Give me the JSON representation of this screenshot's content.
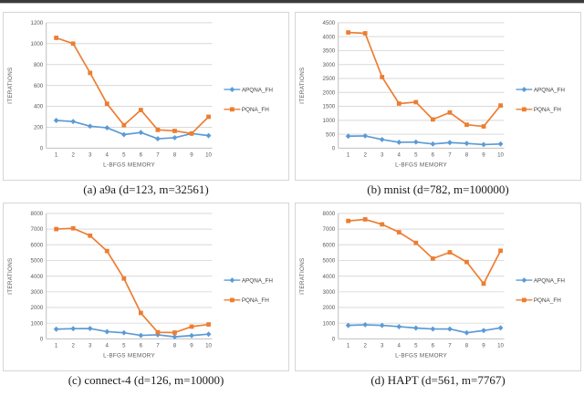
{
  "page": {
    "background": "#ffffff",
    "top_rule_color": "#3a3a3a"
  },
  "styles": {
    "grid_color": "#d9d9d9",
    "axis_color": "#bfbfbf",
    "tick_label_color": "#595959",
    "axis_title_color": "#595959",
    "legend_text_color": "#404040",
    "panel_border_color": "#d6d6d6",
    "series_colors": {
      "APQNA_FH": "#5b9bd5",
      "PQNA_FH": "#ed7d31"
    }
  },
  "chart_data": [
    {
      "id": "a",
      "type": "line",
      "caption": "(a) a9a (d=123, m=32561)",
      "xlabel": "L-BFGS MEMORY",
      "ylabel": "ITERATIONS",
      "categories": [
        1,
        2,
        3,
        4,
        5,
        6,
        7,
        8,
        9,
        10
      ],
      "ylim": [
        0,
        1200
      ],
      "yticks": [
        0,
        200,
        400,
        600,
        800,
        1000,
        1200
      ],
      "grid": true,
      "legend_position": "right",
      "series": [
        {
          "name": "APQNA_FH",
          "color": "#5b9bd5",
          "marker": "diamond",
          "values": [
            265,
            255,
            210,
            195,
            130,
            150,
            90,
            100,
            140,
            120
          ]
        },
        {
          "name": "PQNA_FH",
          "color": "#ed7d31",
          "marker": "square",
          "values": [
            1055,
            1000,
            720,
            425,
            220,
            365,
            175,
            165,
            140,
            300
          ]
        }
      ]
    },
    {
      "id": "b",
      "type": "line",
      "caption": "(b) mnist (d=782, m=100000)",
      "xlabel": "L-BFGS MEMORY",
      "ylabel": "ITERATIONS",
      "categories": [
        1,
        2,
        3,
        4,
        5,
        6,
        7,
        8,
        9,
        10
      ],
      "ylim": [
        0,
        4500
      ],
      "yticks": [
        0,
        500,
        1000,
        1500,
        2000,
        2500,
        3000,
        3500,
        4000,
        4500
      ],
      "grid": true,
      "legend_position": "right",
      "series": [
        {
          "name": "APQNA_FH",
          "color": "#5b9bd5",
          "marker": "diamond",
          "values": [
            430,
            440,
            310,
            210,
            220,
            150,
            200,
            170,
            130,
            150
          ]
        },
        {
          "name": "PQNA_FH",
          "color": "#ed7d31",
          "marker": "square",
          "values": [
            4150,
            4120,
            2550,
            1600,
            1650,
            1030,
            1280,
            840,
            780,
            1530
          ]
        }
      ]
    },
    {
      "id": "c",
      "type": "line",
      "caption": "(c) connect-4 (d=126, m=10000)",
      "xlabel": "L-BFGS MEMORY",
      "ylabel": "ITERATIONS",
      "categories": [
        1,
        2,
        3,
        4,
        5,
        6,
        7,
        8,
        9,
        10
      ],
      "ylim": [
        0,
        8000
      ],
      "yticks": [
        0,
        1000,
        2000,
        3000,
        4000,
        5000,
        6000,
        7000,
        8000
      ],
      "grid": true,
      "legend_position": "right",
      "series": [
        {
          "name": "APQNA_FH",
          "color": "#5b9bd5",
          "marker": "diamond",
          "values": [
            620,
            650,
            660,
            460,
            390,
            220,
            260,
            130,
            210,
            300
          ]
        },
        {
          "name": "PQNA_FH",
          "color": "#ed7d31",
          "marker": "square",
          "values": [
            7000,
            7050,
            6580,
            5600,
            3850,
            1650,
            420,
            400,
            780,
            920
          ]
        }
      ]
    },
    {
      "id": "d",
      "type": "line",
      "caption": "(d) HAPT (d=561, m=7767)",
      "xlabel": "L-BFGS MEMORY",
      "ylabel": "ITERATIONS",
      "categories": [
        1,
        2,
        3,
        4,
        5,
        6,
        7,
        8,
        9,
        10
      ],
      "ylim": [
        0,
        8000
      ],
      "yticks": [
        0,
        1000,
        2000,
        3000,
        4000,
        5000,
        6000,
        7000,
        8000
      ],
      "grid": true,
      "legend_position": "right",
      "series": [
        {
          "name": "APQNA_FH",
          "color": "#5b9bd5",
          "marker": "diamond",
          "values": [
            860,
            900,
            860,
            780,
            690,
            630,
            630,
            390,
            530,
            700
          ]
        },
        {
          "name": "PQNA_FH",
          "color": "#ed7d31",
          "marker": "square",
          "values": [
            7520,
            7620,
            7300,
            6800,
            6120,
            5120,
            5520,
            4900,
            3520,
            5620
          ]
        }
      ]
    }
  ]
}
